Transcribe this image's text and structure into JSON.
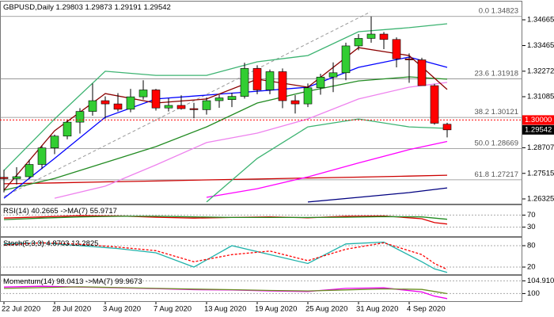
{
  "chart_data": [
    {
      "type": "candlestick",
      "title": "GBPUSD,Daily",
      "categories": [
        "22 Jul 2020",
        null,
        null,
        null,
        "28 Jul 2020",
        null,
        null,
        null,
        "3 Aug 2020",
        null,
        null,
        null,
        "7 Aug 2020",
        null,
        null,
        null,
        "13 Aug 2020",
        null,
        null,
        null,
        "19 Aug 2020",
        null,
        null,
        null,
        "25 Aug 2020",
        null,
        null,
        null,
        "31 Aug 2020",
        null,
        null,
        null,
        "4 Sep 2020",
        null,
        null,
        null
      ],
      "open": [
        1.2733,
        1.2727,
        1.2736,
        1.2793,
        1.287,
        1.2925,
        1.299,
        1.304,
        1.309,
        1.3075,
        1.305,
        1.3108,
        1.314,
        1.3056,
        1.3068,
        1.3053,
        1.3048,
        1.309,
        1.3095,
        1.311,
        1.324,
        1.314,
        1.3225,
        1.309,
        1.3075,
        1.315,
        1.32,
        1.322,
        1.3345,
        1.338,
        1.34,
        1.3375,
        1.3285,
        1.328,
        1.316,
        1.29803
      ],
      "high": [
        1.2768,
        1.278,
        1.2815,
        1.288,
        1.2932,
        1.3003,
        1.3055,
        1.317,
        1.311,
        1.3125,
        1.3145,
        1.3185,
        1.3145,
        1.3101,
        1.3115,
        1.308,
        1.3105,
        1.3117,
        1.3127,
        1.3267,
        1.3255,
        1.3235,
        1.324,
        1.3116,
        1.317,
        1.3215,
        1.3268,
        1.336,
        1.34,
        1.3482,
        1.341,
        1.3385,
        1.331,
        1.329,
        1.3168,
        1.29873
      ],
      "low": [
        1.2663,
        1.27,
        1.2725,
        1.2772,
        1.2841,
        1.291,
        1.2937,
        1.302,
        1.3006,
        1.304,
        1.3036,
        1.3095,
        1.3044,
        1.304,
        1.3048,
        1.3008,
        1.3025,
        1.3057,
        1.306,
        1.31,
        1.312,
        1.312,
        1.3055,
        1.303,
        1.306,
        1.3118,
        1.313,
        1.3185,
        1.3325,
        1.336,
        1.333,
        1.3245,
        1.3173,
        1.3161,
        1.2978,
        1.29191
      ],
      "close": [
        1.2727,
        1.2736,
        1.2793,
        1.287,
        1.2925,
        1.299,
        1.304,
        1.309,
        1.3075,
        1.305,
        1.3108,
        1.314,
        1.3056,
        1.3068,
        1.3053,
        1.3048,
        1.309,
        1.3103,
        1.311,
        1.324,
        1.314,
        1.3225,
        1.309,
        1.3075,
        1.315,
        1.32,
        1.322,
        1.3345,
        1.338,
        1.34,
        1.3375,
        1.3285,
        1.328,
        1.316,
        1.2985,
        1.29542
      ],
      "up_color": "#32cd32",
      "down_color": "#ff0000",
      "lines": [
        {
          "color": "#cc0000",
          "x": [
            0,
            4,
            8,
            12,
            16,
            20,
            24,
            28,
            32,
            35
          ],
          "values": [
            1.2703,
            1.2707,
            1.2712,
            1.2716,
            1.2721,
            1.2725,
            1.273,
            1.2734,
            1.2739,
            1.2743
          ]
        },
        {
          "color": "#000080",
          "x": [
            24,
            28,
            32,
            35
          ],
          "values": [
            1.2618,
            1.264,
            1.2662,
            1.2684
          ]
        },
        {
          "color": "#ff00ff",
          "x": [
            16,
            20,
            24,
            28,
            32,
            35
          ],
          "values": [
            1.264,
            1.268,
            1.2735,
            1.28,
            1.2862,
            1.29
          ]
        },
        {
          "color": "#ee82ee",
          "x": [
            4,
            8,
            12,
            16,
            20,
            24,
            28,
            32,
            35
          ],
          "values": [
            1.2636,
            1.2692,
            1.2791,
            1.2895,
            1.2939,
            1.3005,
            1.3098,
            1.3153,
            1.3175
          ]
        },
        {
          "color": "#228b22",
          "x": [
            0,
            4,
            8,
            12,
            16,
            20,
            24,
            28,
            32,
            35
          ],
          "values": [
            1.2673,
            1.2728,
            1.2802,
            1.2876,
            1.2968,
            1.3079,
            1.3134,
            1.3182,
            1.3201,
            1.319
          ]
        },
        {
          "color": "#0000ff",
          "x": [
            0,
            4,
            8,
            12,
            16,
            20,
            24,
            28,
            32,
            35
          ],
          "values": [
            1.2636,
            1.2821,
            1.3013,
            1.3098,
            1.3116,
            1.3134,
            1.3153,
            1.3245,
            1.3293,
            1.3245
          ]
        },
        {
          "color": "#8b0000",
          "x": [
            0,
            4,
            8,
            12,
            16,
            20,
            24,
            28,
            32,
            35
          ],
          "values": [
            1.2673,
            1.295,
            1.3123,
            1.3079,
            1.3098,
            1.319,
            1.3153,
            1.3337,
            1.33,
            1.3142
          ]
        },
        {
          "color": "#3cb371",
          "x": [
            0,
            4,
            8,
            12,
            16,
            20,
            24,
            28,
            32,
            35
          ],
          "values": [
            1.2765,
            1.3005,
            1.3227,
            1.3208,
            1.3208,
            1.3271,
            1.33,
            1.3411,
            1.343,
            1.3448
          ]
        },
        {
          "color": "#3cb371",
          "x": [
            16,
            20,
            24,
            28,
            32,
            35
          ],
          "values": [
            1.2618,
            1.2821,
            1.2968,
            1.3005,
            1.2968,
            1.2961
          ]
        }
      ],
      "levels": [
        {
          "label": "0.0",
          "value": 1.34823
        },
        {
          "label": "23.6",
          "value": 1.31918
        },
        {
          "label": "38.2",
          "value": 1.30121
        },
        {
          "label": "50.0",
          "value": 1.28669
        },
        {
          "label": "61.8",
          "value": 1.27217
        }
      ],
      "price_line": {
        "value": 1.3,
        "label": "1.30000",
        "color": "#ff0000"
      },
      "ylim": [
        1.26104,
        1.35477
      ],
      "yticks": [
        1.26325,
        1.27515,
        1.28707,
        1.31085,
        1.32272,
        1.33465,
        1.34665
      ],
      "grid": false
    },
    {
      "type": "line",
      "ylim": [
        0,
        100
      ],
      "yticks": [
        70,
        30
      ],
      "grid": true,
      "series": [
        {
          "name": "RSI(14)",
          "color": "#dd0000",
          "x": [
            0,
            3,
            6,
            9,
            12,
            15,
            18,
            21,
            24,
            27,
            30,
            33,
            34,
            35
          ],
          "values": [
            60,
            64,
            68,
            67,
            63,
            60,
            62,
            64,
            61,
            66,
            67,
            58,
            45,
            40.2665
          ]
        },
        {
          "name": "->MA(7)",
          "color": "#228b22",
          "x": [
            0,
            3,
            6,
            9,
            12,
            15,
            18,
            21,
            24,
            27,
            30,
            33,
            34,
            35
          ],
          "values": [
            55,
            60,
            64,
            66,
            66,
            64,
            62,
            62,
            62,
            63,
            65,
            64,
            60,
            55.9717
          ]
        }
      ]
    },
    {
      "type": "line",
      "ylim": [
        0,
        100
      ],
      "yticks": [
        80,
        20
      ],
      "grid": true,
      "series": [
        {
          "name": "Stoch(5,3,3)",
          "color": "#20b2aa",
          "x": [
            0,
            3,
            6,
            9,
            12,
            15,
            18,
            21,
            24,
            27,
            30,
            33,
            34,
            35
          ],
          "values": [
            85,
            88,
            80,
            72,
            60,
            20,
            80,
            55,
            30,
            85,
            90,
            35,
            15,
            4.8703
          ]
        },
        {
          "color": "#ff0000",
          "style": "dashed",
          "x": [
            0,
            3,
            6,
            9,
            12,
            15,
            18,
            21,
            24,
            27,
            30,
            33,
            34,
            35
          ],
          "values": [
            82,
            88,
            84,
            76,
            66,
            35,
            55,
            65,
            38,
            70,
            88,
            55,
            30,
            13.2825
          ]
        }
      ]
    },
    {
      "type": "line",
      "ylim": [
        97.06,
        106.55
      ],
      "yticks": [
        104.9102,
        100
      ],
      "grid": true,
      "series": [
        {
          "name": "Momentum(14)",
          "color": "#ee00ee",
          "x": [
            0,
            3,
            6,
            9,
            12,
            15,
            18,
            21,
            24,
            27,
            30,
            33,
            34,
            35
          ],
          "values": [
            102.5,
            102.8,
            102.5,
            102.2,
            101.9,
            101.5,
            101.4,
            101.0,
            100.8,
            102.0,
            102.2,
            100.6,
            99.0,
            98.0413
          ]
        },
        {
          "name": "->MA(7)",
          "color": "#6b8e23",
          "x": [
            0,
            3,
            6,
            9,
            12,
            15,
            18,
            21,
            24,
            27,
            30,
            33,
            34,
            35
          ],
          "values": [
            102.0,
            102.3,
            102.6,
            102.3,
            102.0,
            101.7,
            101.5,
            101.2,
            101.0,
            101.4,
            101.8,
            101.6,
            100.8,
            99.9673
          ]
        }
      ]
    }
  ]
}
